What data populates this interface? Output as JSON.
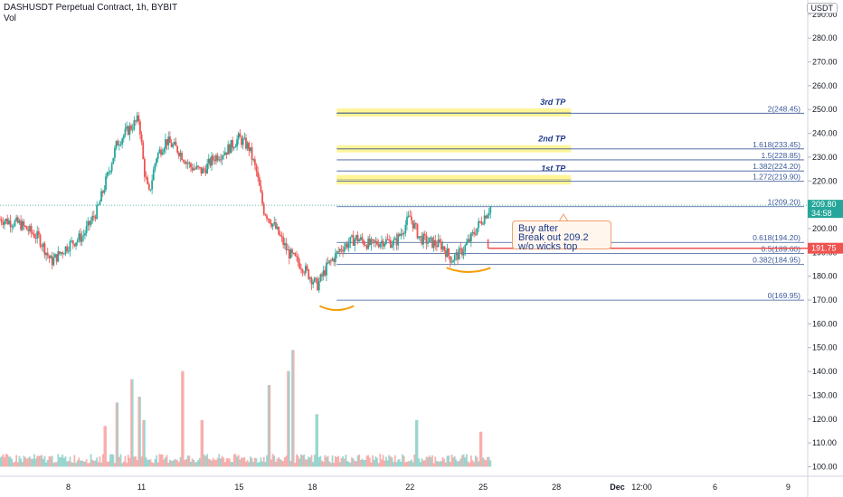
{
  "header": {
    "symbol_line": "DASHUSDT Perpetual Contract, 1h, BYBIT",
    "volume_label": "Vol",
    "currency": "USDT"
  },
  "chart_data": {
    "type": "candlestick",
    "price_axis": {
      "range": [
        96,
        296
      ],
      "ticks": [
        "290.00",
        "280.00",
        "270.00",
        "260.00",
        "250.00",
        "240.00",
        "230.00",
        "220.00",
        "210.00",
        "200.00",
        "190.00",
        "180.00",
        "170.00",
        "160.00",
        "150.00",
        "140.00",
        "130.00",
        "120.00",
        "110.00",
        "100.00"
      ]
    },
    "time_axis": {
      "ticks": [
        {
          "label": "8",
          "day": 8
        },
        {
          "label": "11",
          "day": 11
        },
        {
          "label": "15",
          "day": 15
        },
        {
          "label": "18",
          "day": 18
        },
        {
          "label": "22",
          "day": 22
        },
        {
          "label": "25",
          "day": 25
        },
        {
          "label": "28",
          "day": 28
        },
        {
          "label": "Dec",
          "day": 30.5
        },
        {
          "label": "12:00",
          "day": 31.5
        },
        {
          "label": "6",
          "day": 34.5
        },
        {
          "label": "9",
          "day": 37.5
        }
      ],
      "range_days": [
        5.2,
        38.3
      ]
    },
    "price_path": [
      [
        5.2,
        204
      ],
      [
        6.0,
        202
      ],
      [
        6.8,
        196
      ],
      [
        7.3,
        186
      ],
      [
        8.0,
        193
      ],
      [
        8.6,
        197
      ],
      [
        9.2,
        208
      ],
      [
        9.6,
        222
      ],
      [
        10.0,
        236
      ],
      [
        10.5,
        242
      ],
      [
        10.9,
        246
      ],
      [
        11.1,
        225
      ],
      [
        11.3,
        214
      ],
      [
        11.6,
        230
      ],
      [
        12.0,
        237
      ],
      [
        12.5,
        233
      ],
      [
        13.0,
        226
      ],
      [
        13.5,
        224
      ],
      [
        14.0,
        230
      ],
      [
        14.5,
        233
      ],
      [
        15.0,
        238
      ],
      [
        15.4,
        234
      ],
      [
        15.7,
        224
      ],
      [
        16.0,
        208
      ],
      [
        16.5,
        200
      ],
      [
        17.0,
        190
      ],
      [
        17.6,
        184
      ],
      [
        18.2,
        176
      ],
      [
        18.6,
        184
      ],
      [
        19.2,
        192
      ],
      [
        19.8,
        196
      ],
      [
        20.4,
        193
      ],
      [
        20.9,
        195
      ],
      [
        21.4,
        194
      ],
      [
        22.0,
        205
      ],
      [
        22.4,
        196
      ],
      [
        22.9,
        194
      ],
      [
        23.3,
        193
      ],
      [
        23.7,
        187
      ],
      [
        24.1,
        190
      ],
      [
        24.5,
        196
      ],
      [
        24.9,
        203
      ],
      [
        25.3,
        209
      ]
    ],
    "volume": {
      "base_price_axis": 100,
      "top_price_axis": 149,
      "spikes": [
        {
          "day": 9.5,
          "v": 0.35
        },
        {
          "day": 10.0,
          "v": 0.55
        },
        {
          "day": 10.6,
          "v": 0.75
        },
        {
          "day": 10.9,
          "v": 0.6
        },
        {
          "day": 11.1,
          "v": 0.4
        },
        {
          "day": 12.7,
          "v": 0.82
        },
        {
          "day": 13.5,
          "v": 0.4
        },
        {
          "day": 16.2,
          "v": 0.7
        },
        {
          "day": 17.0,
          "v": 0.82
        },
        {
          "day": 17.2,
          "v": 1.0
        },
        {
          "day": 18.2,
          "v": 0.45
        },
        {
          "day": 22.3,
          "v": 0.4
        },
        {
          "day": 24.9,
          "v": 0.3
        }
      ]
    },
    "fib_levels": [
      {
        "label": "2(248.45)",
        "price": 248.45
      },
      {
        "label": "1.618(233.45)",
        "price": 233.45
      },
      {
        "label": "1.5(228.85)",
        "price": 228.85
      },
      {
        "label": "1.382(224.20)",
        "price": 224.2
      },
      {
        "label": "1.272(219.90)",
        "price": 219.9
      },
      {
        "label": "1(209.20)",
        "price": 209.2
      },
      {
        "label": "0.618(194.20)",
        "price": 194.2
      },
      {
        "label": "0.5(189.60)",
        "price": 189.6
      },
      {
        "label": "0.382(184.95)",
        "price": 184.95
      },
      {
        "label": "0(169.95)",
        "price": 169.95
      }
    ],
    "fib_start_day": 19.0,
    "targets": [
      {
        "label": "3rd TP",
        "low": 247,
        "high": 250.5,
        "day_from": 19.0,
        "day_to": 28.6
      },
      {
        "label": "2nd TP",
        "low": 232,
        "high": 235,
        "day_from": 19.0,
        "day_to": 28.6
      },
      {
        "label": "1st TP",
        "low": 218.5,
        "high": 222.5,
        "day_from": 19.0,
        "day_to": 28.6
      }
    ],
    "current_price": {
      "value": "209.80",
      "countdown": "34:58",
      "price": 209.8,
      "color": "#26a69a"
    },
    "red_level": {
      "value": "191.75",
      "price": 191.75,
      "color": "#ef5350",
      "day_from": 25.2
    },
    "annotation": "Buy after\nBreak out 209.2\nw/o wicks top",
    "colors": {
      "up": "#26a69a",
      "down": "#ef5350",
      "fib": "#3d5a99",
      "target_fill": "#fff176",
      "arc": "#f59e0b"
    }
  }
}
